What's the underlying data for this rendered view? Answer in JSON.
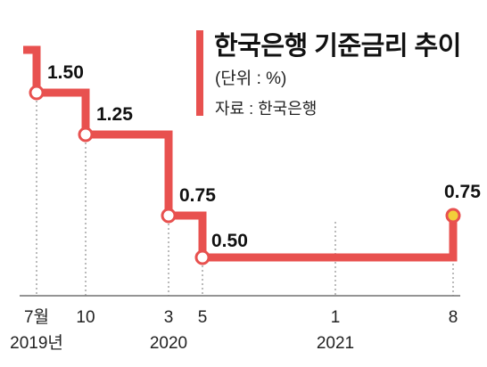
{
  "title": "한국은행 기준금리 추이",
  "unit": "(단위 : %)",
  "source": "자료 : 한국은행",
  "colors": {
    "line": "#e8514f",
    "marker_fill": "#ffffff",
    "last_marker_fill": "#f2cf3a",
    "text": "#111111",
    "guide": "#777777"
  },
  "chart_data": {
    "type": "line",
    "step": true,
    "title": "한국은행 기준금리 추이",
    "ylabel": "(단위 : %)",
    "x": [
      "2019-07",
      "2019-10",
      "2020-03",
      "2020-05",
      "2021-08"
    ],
    "values": [
      1.5,
      1.25,
      0.75,
      0.5,
      0.75
    ],
    "data_labels": [
      "1.50",
      "1.25",
      "0.75",
      "0.50",
      "0.75"
    ],
    "start_value": 1.75,
    "end_value": 0.75,
    "xticks": [
      {
        "date": "2019-07",
        "label": "7월",
        "guide": true
      },
      {
        "date": "2019-10",
        "label": "10",
        "guide": true
      },
      {
        "date": "2020-03",
        "label": "3",
        "guide": true
      },
      {
        "date": "2020-05",
        "label": "5",
        "guide": true
      },
      {
        "date": "2021-01",
        "label": "1",
        "guide": true
      },
      {
        "date": "2021-08",
        "label": "8",
        "guide": true
      }
    ],
    "year_labels": [
      {
        "date": "2019-07",
        "label": "2019년"
      },
      {
        "date": "2020-03",
        "label": "2020"
      },
      {
        "date": "2021-01",
        "label": "2021"
      }
    ],
    "grid": false,
    "legend": "none"
  }
}
